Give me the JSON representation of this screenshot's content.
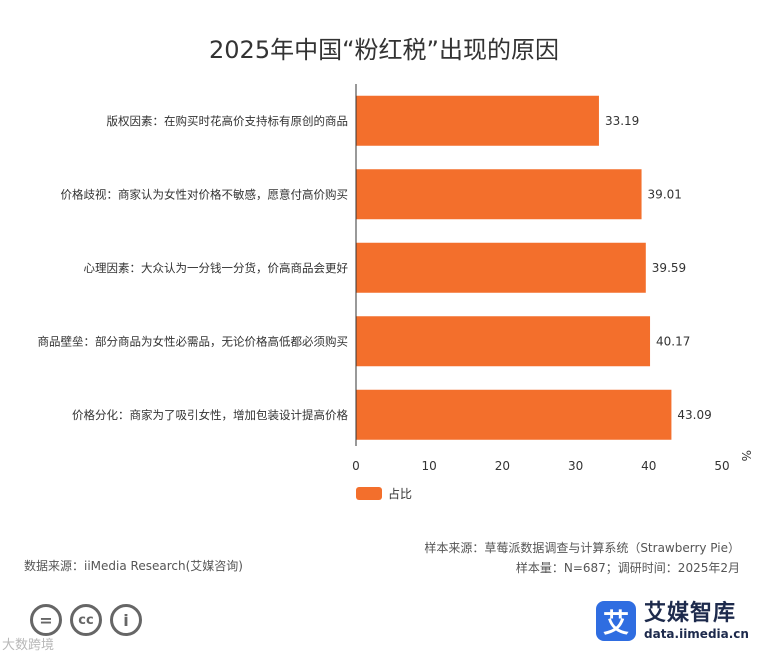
{
  "title": "2025年中国“粉红税”出现的原因",
  "chart_data": {
    "type": "bar",
    "orientation": "horizontal",
    "categories": [
      "版权因素：在购买时花高价支持标有原创的商品",
      "价格歧视：商家认为女性对价格不敏感，愿意付高价购买",
      "心理因素：大众认为一分钱一分货，价高商品会更好",
      "商品壁垒：部分商品为女性必需品，无论价格高低都必须购买",
      "价格分化：商家为了吸引女性，增加包装设计提高价格"
    ],
    "series": [
      {
        "name": "占比",
        "values": [
          33.19,
          39.01,
          39.59,
          40.17,
          43.09
        ],
        "color": "#f36f2c"
      }
    ],
    "value_labels": [
      "33.19",
      "39.01",
      "39.59",
      "40.17",
      "43.09"
    ],
    "xlim": [
      0,
      50
    ],
    "xticks": [
      0,
      10,
      20,
      30,
      40,
      50
    ],
    "xtick_labels": [
      "0",
      "10",
      "20",
      "30",
      "40",
      "50"
    ],
    "unit": "%",
    "grid": false,
    "legend": "bottom-left"
  },
  "footer": {
    "source": "数据来源：iiMedia Research(艾媒咨询)",
    "sample_source": "样本来源：草莓派数据调查与计算系统（Strawberry Pie）",
    "sample_info": "样本量：N=687；调研时间：2025年2月"
  },
  "license_icons": [
    "=",
    "cc",
    "i"
  ],
  "watermark": "大数跨境",
  "brand": {
    "logo_char": "艾",
    "name": "艾媒智库",
    "url": "data.iimedia.cn",
    "color": "#2f6de1"
  }
}
